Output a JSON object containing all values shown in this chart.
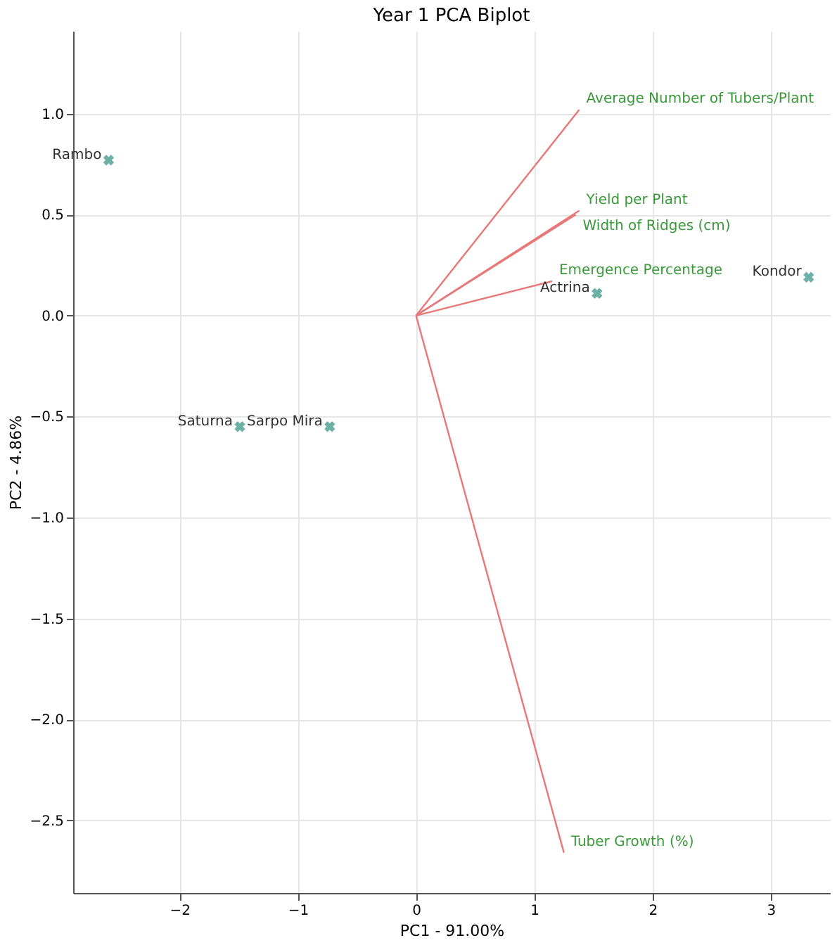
{
  "chart_data": {
    "type": "scatter",
    "title": "Year 1 PCA Biplot",
    "xlabel": "PC1 - 91.00%",
    "ylabel": "PC2 - 4.86%",
    "xlim": [
      -2.9,
      3.5
    ],
    "ylim": [
      -2.86,
      1.41
    ],
    "xticks": [
      {
        "value": -2,
        "label": "−2"
      },
      {
        "value": -1,
        "label": "−1"
      },
      0,
      1,
      2,
      3
    ],
    "yticks": [
      {
        "value": -2.5,
        "label": "−2.5"
      },
      {
        "value": -2,
        "label": "−2.0"
      },
      {
        "value": -1.5,
        "label": "−1.5"
      },
      {
        "value": -1,
        "label": "−1.0"
      },
      {
        "value": -0.5,
        "label": "−0.5"
      },
      {
        "value": 0,
        "label": "0.0"
      },
      {
        "value": 0.5,
        "label": "0.5"
      },
      {
        "value": 1,
        "label": "1.0"
      }
    ],
    "grid": true,
    "series": [
      {
        "marker": "cross",
        "color": "#2f8f7f",
        "x": [
          -2.6,
          -1.49,
          -0.73,
          1.53,
          3.32
        ],
        "values": [
          0.77,
          -0.55,
          -0.55,
          0.11,
          0.19
        ]
      },
      {
        "type": "line",
        "name": "Average Number of Tubers/Plant",
        "color": "#e87878",
        "x": [
          0,
          1.38
        ],
        "values": [
          0,
          1.02
        ]
      },
      {
        "type": "line",
        "name": "Yield per Plant",
        "color": "#e87878",
        "x": [
          0,
          1.38
        ],
        "values": [
          0,
          0.52
        ]
      },
      {
        "type": "line",
        "name": "Width of Ridges (cm)",
        "color": "#e87878",
        "x": [
          0,
          1.35
        ],
        "values": [
          0,
          0.5
        ]
      },
      {
        "type": "line",
        "name": "Emergence Percentage",
        "color": "#e87878",
        "x": [
          0,
          1.15
        ],
        "values": [
          0,
          0.17
        ]
      },
      {
        "type": "line",
        "name": "Tuber Growth (%)",
        "color": "#e87878",
        "x": [
          0,
          1.25
        ],
        "values": [
          0,
          -2.66
        ]
      }
    ],
    "annotations": [
      {
        "text": "Rambo",
        "x": -2.6,
        "y": 0.77
      },
      {
        "text": "Saturna",
        "x": -1.49,
        "y": -0.55
      },
      {
        "text": "Sarpo Mira",
        "x": -0.73,
        "y": -0.55
      },
      {
        "text": "Actrina",
        "x": 1.53,
        "y": 0.11
      },
      {
        "text": "Kondor",
        "x": 3.32,
        "y": 0.19
      }
    ]
  }
}
